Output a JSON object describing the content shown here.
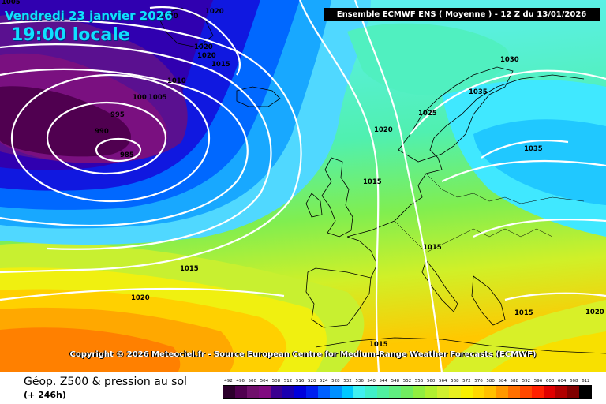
{
  "header": {
    "date": "Vendredi 23 janvier 2026",
    "time": "19:00 locale",
    "model": "Ensemble ECMWF ENS  ( Moyenne )  -  12 Z du 13/01/2026"
  },
  "footer": {
    "copyright": "Copyright © 2026 Meteociel.fr - Source European Centre for Medium-Range Weather Forecasts (ECMWF)",
    "title": "Géop. Z500 & pression au sol",
    "subtitle": "(+ 246h)"
  },
  "isobar_labels": [
    {
      "text": "1005"
    },
    {
      "text": "1020"
    },
    {
      "text": "1020"
    },
    {
      "text": "1020"
    },
    {
      "text": "1020"
    },
    {
      "text": "1015"
    },
    {
      "text": "1010"
    },
    {
      "text": "1005"
    },
    {
      "text": "100"
    },
    {
      "text": "995"
    },
    {
      "text": "990"
    },
    {
      "text": "985"
    },
    {
      "text": "1030"
    },
    {
      "text": "1035"
    },
    {
      "text": "1025"
    },
    {
      "text": "1020"
    },
    {
      "text": "1035"
    },
    {
      "text": "1015"
    },
    {
      "text": "1015"
    },
    {
      "text": "1015"
    },
    {
      "text": "1020"
    },
    {
      "text": "1015"
    },
    {
      "text": "1015"
    },
    {
      "text": "1020"
    }
  ],
  "scale": {
    "values": [
      "492",
      "496",
      "500",
      "504",
      "508",
      "512",
      "516",
      "520",
      "524",
      "528",
      "532",
      "536",
      "540",
      "544",
      "548",
      "552",
      "556",
      "560",
      "564",
      "568",
      "572",
      "576",
      "580",
      "584",
      "588",
      "592",
      "596",
      "600",
      "604",
      "608",
      "612"
    ],
    "colors": [
      "#2c002c",
      "#500050",
      "#70106c",
      "#800a80",
      "#3a0090",
      "#1a00b0",
      "#0000dc",
      "#0020f0",
      "#0060ff",
      "#0090ff",
      "#00c8ff",
      "#40f0f0",
      "#40f0c8",
      "#50f0a0",
      "#60ee80",
      "#70ec60",
      "#90ee40",
      "#b0f030",
      "#d0f030",
      "#e8f020",
      "#f8f000",
      "#ffd800",
      "#ffc000",
      "#ff9800",
      "#ff7000",
      "#ff4800",
      "#ff2000",
      "#e00000",
      "#b00000",
      "#800000",
      "#000000"
    ]
  }
}
